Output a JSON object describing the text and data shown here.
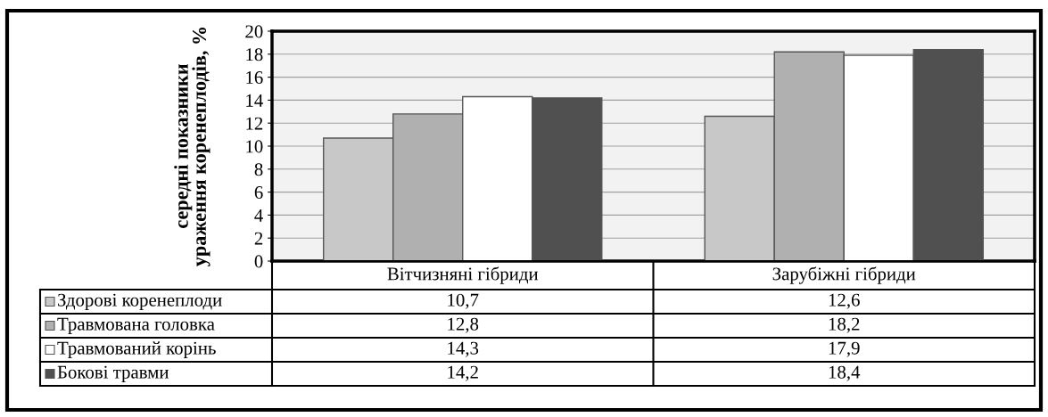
{
  "chart_data": {
    "type": "bar",
    "ylabel": "середні показники\nураження коренеплодів, %",
    "categories": [
      "Вітчизняні гібриди",
      "Зарубіжні гібриди"
    ],
    "series": [
      {
        "name": "Здорові коренеплоди",
        "color": "#c8c8c8",
        "values": [
          10.7,
          12.6
        ],
        "value_labels": [
          "10,7",
          "12,6"
        ]
      },
      {
        "name": "Травмована головка",
        "color": "#b0b0b0",
        "values": [
          12.8,
          18.2
        ],
        "value_labels": [
          "12,8",
          "18,2"
        ]
      },
      {
        "name": "Травмований корінь",
        "color": "#ffffff",
        "values": [
          14.3,
          17.9
        ],
        "value_labels": [
          "14,3",
          "17,9"
        ]
      },
      {
        "name": "Бокові травми",
        "color": "#505050",
        "values": [
          14.2,
          18.4
        ],
        "value_labels": [
          "14,2",
          "18,4"
        ]
      }
    ],
    "ylim": [
      0,
      20
    ],
    "yticks": [
      0,
      2,
      4,
      6,
      8,
      10,
      12,
      14,
      16,
      18,
      20
    ],
    "grid": "y",
    "legend": "bottom left"
  }
}
